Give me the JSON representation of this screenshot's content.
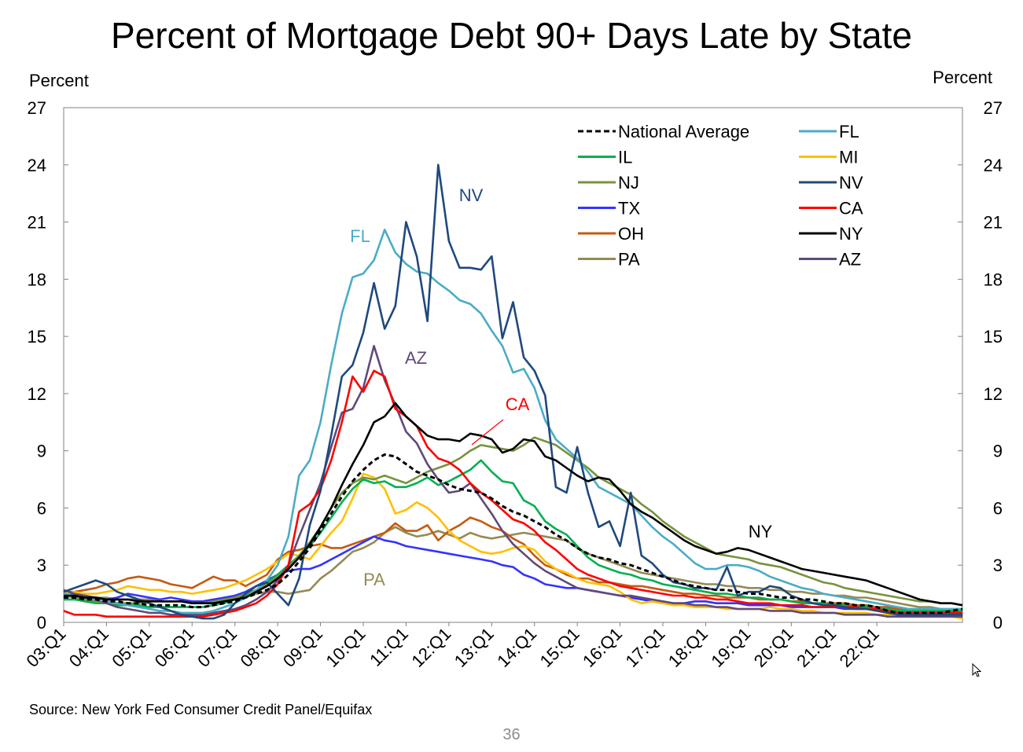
{
  "chart_data": {
    "type": "line",
    "title": "Percent of Mortgage Debt 90+ Days Late by State",
    "ylabel_left": "Percent",
    "ylabel_right": "Percent",
    "xlabel": "",
    "ylim": [
      0,
      27
    ],
    "yticks": [
      "0",
      "3",
      "6",
      "9",
      "12",
      "15",
      "18",
      "21",
      "24",
      "27"
    ],
    "x_start": 2003.0,
    "x_step": 0.25,
    "x_ticks": [
      "03:Q1",
      "04:Q1",
      "05:Q1",
      "06:Q1",
      "07:Q1",
      "08:Q1",
      "09:Q1",
      "10:Q1",
      "11:Q1",
      "12:Q1",
      "13:Q1",
      "14:Q1",
      "15:Q1",
      "16:Q1",
      "17:Q1",
      "18:Q1",
      "19:Q1",
      "20:Q1",
      "21:Q1",
      "22:Q1"
    ],
    "legend": {
      "placement": "top-right",
      "columns": 2
    },
    "annotations": [
      {
        "text": "NV",
        "series": "NV",
        "color": "#1f497d"
      },
      {
        "text": "FL",
        "series": "FL",
        "color": "#4bacc6"
      },
      {
        "text": "AZ",
        "series": "AZ",
        "color": "#60497a"
      },
      {
        "text": "CA",
        "series": "CA",
        "color": "#ff0000"
      },
      {
        "text": "NY",
        "series": "NY",
        "color": "#000000"
      },
      {
        "text": "PA",
        "series": "PA",
        "color": "#948a54"
      }
    ],
    "series": [
      {
        "name": "National Average",
        "color": "#000000",
        "dashed": true,
        "values": [
          1.3,
          1.3,
          1.2,
          1.2,
          1.1,
          1.1,
          1.0,
          1.0,
          0.9,
          0.9,
          0.9,
          0.9,
          0.8,
          0.8,
          0.9,
          1.0,
          1.1,
          1.3,
          1.5,
          1.7,
          2.0,
          2.5,
          3.2,
          3.9,
          4.8,
          5.7,
          6.6,
          7.4,
          8.0,
          8.5,
          8.8,
          8.7,
          8.3,
          7.9,
          7.7,
          7.5,
          7.2,
          7.0,
          6.9,
          6.8,
          6.5,
          6.1,
          5.8,
          5.6,
          5.3,
          5.0,
          4.6,
          4.3,
          3.9,
          3.6,
          3.4,
          3.3,
          3.1,
          3.0,
          2.8,
          2.6,
          2.4,
          2.2,
          2.0,
          1.9,
          1.8,
          1.7,
          1.7,
          1.6,
          1.5,
          1.5,
          1.4,
          1.3,
          1.3,
          1.2,
          1.2,
          1.1,
          1.0,
          1.0,
          0.9,
          0.9,
          0.8,
          0.6,
          0.5,
          0.5,
          0.5,
          0.5,
          0.5,
          0.6,
          0.7
        ]
      },
      {
        "name": "FL",
        "color": "#4bacc6",
        "values": [
          1.5,
          1.4,
          1.3,
          1.2,
          1.1,
          1.0,
          0.9,
          0.8,
          0.7,
          0.6,
          0.6,
          0.5,
          0.5,
          0.5,
          0.6,
          0.8,
          1.0,
          1.3,
          1.7,
          2.2,
          3.0,
          4.5,
          7.7,
          8.5,
          10.5,
          13.5,
          16.2,
          18.1,
          18.3,
          19.0,
          20.6,
          19.4,
          18.8,
          18.4,
          18.3,
          17.8,
          17.4,
          16.9,
          16.7,
          16.2,
          15.3,
          14.5,
          13.1,
          13.3,
          12.3,
          10.6,
          9.6,
          9.1,
          8.6,
          7.9,
          7.1,
          6.8,
          6.5,
          6.2,
          5.6,
          5.0,
          4.5,
          4.1,
          3.6,
          3.1,
          2.8,
          2.8,
          3.0,
          3.0,
          2.9,
          2.7,
          2.4,
          2.2,
          2.0,
          1.8,
          1.7,
          1.5,
          1.4,
          1.3,
          1.2,
          1.1,
          1.0,
          0.9,
          0.8,
          0.7,
          0.7,
          0.7,
          0.7,
          0.7,
          0.7
        ]
      },
      {
        "name": "IL",
        "color": "#00b050",
        "values": [
          1.2,
          1.2,
          1.1,
          1.0,
          1.0,
          0.9,
          0.9,
          0.9,
          0.8,
          0.8,
          0.8,
          0.8,
          0.8,
          0.8,
          0.9,
          1.0,
          1.2,
          1.4,
          1.7,
          2.1,
          2.5,
          3.0,
          3.5,
          4.0,
          4.7,
          5.5,
          6.3,
          7.0,
          7.5,
          7.3,
          7.4,
          7.1,
          7.1,
          7.3,
          7.6,
          7.2,
          7.4,
          7.7,
          8.0,
          8.5,
          7.9,
          7.4,
          7.3,
          6.4,
          6.1,
          5.3,
          4.9,
          4.6,
          4.0,
          3.4,
          3.0,
          2.8,
          2.6,
          2.5,
          2.3,
          2.2,
          2.0,
          1.9,
          1.8,
          1.7,
          1.6,
          1.5,
          1.5,
          1.4,
          1.3,
          1.3,
          1.2,
          1.2,
          1.1,
          1.0,
          1.0,
          1.0,
          0.9,
          0.9,
          0.8,
          0.8,
          0.7,
          0.7,
          0.6,
          0.6,
          0.6,
          0.6,
          0.6,
          0.6,
          0.6
        ]
      },
      {
        "name": "MI",
        "color": "#ffc000",
        "values": [
          1.5,
          1.6,
          1.5,
          1.5,
          1.6,
          1.7,
          1.9,
          1.8,
          1.7,
          1.7,
          1.6,
          1.6,
          1.5,
          1.6,
          1.7,
          1.8,
          2.0,
          2.2,
          2.5,
          2.8,
          3.2,
          3.6,
          3.5,
          3.3,
          4.0,
          4.7,
          5.3,
          6.5,
          7.8,
          7.6,
          7.0,
          5.7,
          5.9,
          6.3,
          6.0,
          5.5,
          4.8,
          4.3,
          4.0,
          3.7,
          3.6,
          3.7,
          3.9,
          4.0,
          3.8,
          3.2,
          2.8,
          2.6,
          2.3,
          2.1,
          2.0,
          1.9,
          1.6,
          1.2,
          1.0,
          1.1,
          1.0,
          0.9,
          0.9,
          0.8,
          0.8,
          0.8,
          0.7,
          0.7,
          0.7,
          0.7,
          0.8,
          0.7,
          0.7,
          0.6,
          0.6,
          0.5,
          0.5,
          0.5,
          0.5,
          0.5,
          0.4,
          0.4,
          0.4,
          0.4,
          0.4,
          0.3,
          0.3,
          0.3,
          0.2
        ]
      },
      {
        "name": "NJ",
        "color": "#77933c",
        "values": [
          1.4,
          1.3,
          1.2,
          1.1,
          1.0,
          1.0,
          1.0,
          1.0,
          1.1,
          1.1,
          1.1,
          1.1,
          1.0,
          1.0,
          1.1,
          1.2,
          1.3,
          1.5,
          1.7,
          2.0,
          2.4,
          2.9,
          3.5,
          4.2,
          5.0,
          6.0,
          6.8,
          7.3,
          7.6,
          7.5,
          7.7,
          7.5,
          7.3,
          7.6,
          7.9,
          8.1,
          8.3,
          8.6,
          9.0,
          9.3,
          9.2,
          9.1,
          9.0,
          9.3,
          9.7,
          9.5,
          9.3,
          8.9,
          8.5,
          8.1,
          7.6,
          7.3,
          7.0,
          6.7,
          6.2,
          5.8,
          5.3,
          4.9,
          4.5,
          4.2,
          3.9,
          3.6,
          3.5,
          3.4,
          3.3,
          3.1,
          3.0,
          2.9,
          2.7,
          2.5,
          2.3,
          2.1,
          2.0,
          1.8,
          1.7,
          1.6,
          1.5,
          1.4,
          1.3,
          1.2,
          1.1,
          1.1,
          1.0,
          1.0,
          0.9
        ]
      },
      {
        "name": "NV",
        "color": "#1f497d",
        "values": [
          1.6,
          1.8,
          2.0,
          2.2,
          2.0,
          1.6,
          1.4,
          1.2,
          1.0,
          0.8,
          0.6,
          0.4,
          0.3,
          0.2,
          0.2,
          0.4,
          1.0,
          1.5,
          1.9,
          2.1,
          1.5,
          0.9,
          2.3,
          5.1,
          6.9,
          9.8,
          12.9,
          13.5,
          15.2,
          17.8,
          15.4,
          16.6,
          21.0,
          19.2,
          15.8,
          24.0,
          20.0,
          18.6,
          18.6,
          18.5,
          19.2,
          14.9,
          16.8,
          13.9,
          13.2,
          11.9,
          7.1,
          6.8,
          9.2,
          6.8,
          5.0,
          5.3,
          4.0,
          6.8,
          3.5,
          3.1,
          2.5,
          2.1,
          2.0,
          1.8,
          1.8,
          1.7,
          2.9,
          1.4,
          1.6,
          1.6,
          1.9,
          1.8,
          1.4,
          1.2,
          1.0,
          0.9,
          0.9,
          0.8,
          0.7,
          0.7,
          0.6,
          0.5,
          0.4,
          0.4,
          0.4,
          0.4,
          0.4,
          0.4,
          0.4
        ]
      },
      {
        "name": "TX",
        "color": "#3333ff",
        "values": [
          1.6,
          1.5,
          1.4,
          1.3,
          1.2,
          1.3,
          1.5,
          1.4,
          1.3,
          1.2,
          1.3,
          1.2,
          1.1,
          1.1,
          1.2,
          1.3,
          1.4,
          1.6,
          1.9,
          2.2,
          2.5,
          2.7,
          2.8,
          2.8,
          3.0,
          3.3,
          3.6,
          3.9,
          4.2,
          4.5,
          4.3,
          4.2,
          4.0,
          3.9,
          3.8,
          3.7,
          3.6,
          3.5,
          3.4,
          3.3,
          3.2,
          3.0,
          2.9,
          2.5,
          2.3,
          2.0,
          1.9,
          1.8,
          1.8,
          1.7,
          1.6,
          1.5,
          1.4,
          1.3,
          1.2,
          1.1,
          1.0,
          1.0,
          1.0,
          1.1,
          1.1,
          1.0,
          1.0,
          1.0,
          0.9,
          0.9,
          0.9,
          0.9,
          0.8,
          0.8,
          0.8,
          0.8,
          0.8,
          0.7,
          0.7,
          0.7,
          0.7,
          0.6,
          0.6,
          0.5,
          0.5,
          0.5,
          0.5,
          0.5,
          0.5
        ]
      },
      {
        "name": "CA",
        "color": "#ff0000",
        "values": [
          0.6,
          0.4,
          0.4,
          0.4,
          0.3,
          0.3,
          0.3,
          0.3,
          0.3,
          0.3,
          0.3,
          0.3,
          0.3,
          0.3,
          0.4,
          0.5,
          0.6,
          0.8,
          1.0,
          1.4,
          2.0,
          3.0,
          5.8,
          6.2,
          7.0,
          8.5,
          10.5,
          12.9,
          12.1,
          13.2,
          12.9,
          11.2,
          10.8,
          10.3,
          9.2,
          8.6,
          8.4,
          8.0,
          7.3,
          6.8,
          6.4,
          5.9,
          5.4,
          5.2,
          4.8,
          4.2,
          3.8,
          3.3,
          2.8,
          2.5,
          2.3,
          2.1,
          1.9,
          1.8,
          1.7,
          1.6,
          1.5,
          1.4,
          1.4,
          1.3,
          1.3,
          1.2,
          1.2,
          1.1,
          1.0,
          1.0,
          1.0,
          0.9,
          0.9,
          0.9,
          0.8,
          0.8,
          0.8,
          0.8,
          0.8,
          0.7,
          0.7,
          0.6,
          0.5,
          0.5,
          0.5,
          0.5,
          0.5,
          0.5,
          0.5
        ]
      },
      {
        "name": "OH",
        "color": "#c55a11",
        "values": [
          1.6,
          1.6,
          1.7,
          1.8,
          2.0,
          2.1,
          2.3,
          2.4,
          2.3,
          2.2,
          2.0,
          1.9,
          1.8,
          2.1,
          2.4,
          2.2,
          2.2,
          1.9,
          2.2,
          2.5,
          3.3,
          3.7,
          3.8,
          4.0,
          4.1,
          3.9,
          3.9,
          4.1,
          4.3,
          4.5,
          4.7,
          5.2,
          4.8,
          4.8,
          5.1,
          4.3,
          4.8,
          5.1,
          5.5,
          5.3,
          5.0,
          4.8,
          4.4,
          4.1,
          3.5,
          3.0,
          2.8,
          2.5,
          2.3,
          2.3,
          2.1,
          2.1,
          2.0,
          1.9,
          1.9,
          1.8,
          1.7,
          1.6,
          1.5,
          1.5,
          1.4,
          1.4,
          1.3,
          1.3,
          1.3,
          1.2,
          1.2,
          1.2,
          1.1,
          1.1,
          1.0,
          1.0,
          1.0,
          1.0,
          0.9,
          0.9,
          0.8,
          0.8,
          0.7,
          0.7,
          0.7,
          0.6,
          0.6,
          0.6,
          0.6
        ]
      },
      {
        "name": "NY",
        "color": "#000000",
        "values": [
          1.4,
          1.4,
          1.3,
          1.3,
          1.2,
          1.2,
          1.2,
          1.1,
          1.1,
          1.1,
          1.1,
          1.1,
          1.0,
          1.0,
          1.0,
          1.1,
          1.2,
          1.3,
          1.6,
          1.9,
          2.3,
          2.8,
          3.4,
          4.1,
          5.0,
          6.0,
          7.2,
          8.3,
          9.3,
          10.5,
          10.8,
          11.5,
          10.8,
          10.3,
          9.8,
          9.6,
          9.6,
          9.5,
          9.9,
          9.8,
          9.6,
          8.9,
          9.1,
          9.6,
          9.5,
          8.7,
          8.5,
          8.1,
          7.7,
          7.4,
          7.6,
          7.5,
          6.9,
          6.2,
          5.8,
          5.5,
          5.1,
          4.7,
          4.3,
          4.0,
          3.8,
          3.6,
          3.7,
          3.9,
          3.8,
          3.6,
          3.4,
          3.2,
          3.0,
          2.8,
          2.7,
          2.6,
          2.5,
          2.4,
          2.3,
          2.2,
          2.0,
          1.8,
          1.6,
          1.4,
          1.2,
          1.1,
          1.0,
          1.0,
          0.9
        ]
      },
      {
        "name": "PA",
        "color": "#948a54",
        "values": [
          1.5,
          1.4,
          1.4,
          1.3,
          1.3,
          1.2,
          1.2,
          1.2,
          1.2,
          1.1,
          1.1,
          1.1,
          1.1,
          1.1,
          1.2,
          1.2,
          1.3,
          1.4,
          1.5,
          1.6,
          1.6,
          1.5,
          1.6,
          1.7,
          2.3,
          2.7,
          3.2,
          3.7,
          3.9,
          4.2,
          4.7,
          5.0,
          4.7,
          4.5,
          4.6,
          4.8,
          4.6,
          4.4,
          4.7,
          4.5,
          4.4,
          4.5,
          4.6,
          4.7,
          4.6,
          4.5,
          4.4,
          4.3,
          3.9,
          3.6,
          3.4,
          3.2,
          3.0,
          2.8,
          2.6,
          2.5,
          2.4,
          2.3,
          2.2,
          2.1,
          2.0,
          2.0,
          1.9,
          1.9,
          1.8,
          1.8,
          1.7,
          1.7,
          1.6,
          1.6,
          1.5,
          1.5,
          1.4,
          1.4,
          1.3,
          1.3,
          1.2,
          1.1,
          1.0,
          0.9,
          0.8,
          0.8,
          0.7,
          0.7,
          0.7
        ]
      },
      {
        "name": "AZ",
        "color": "#60497a",
        "values": [
          1.7,
          1.5,
          1.4,
          1.2,
          1.0,
          0.8,
          0.7,
          0.6,
          0.5,
          0.5,
          0.4,
          0.4,
          0.4,
          0.4,
          0.5,
          0.6,
          0.7,
          0.9,
          1.2,
          1.6,
          2.2,
          3.0,
          4.5,
          5.9,
          7.3,
          9.2,
          11.0,
          11.2,
          12.3,
          14.5,
          12.7,
          11.4,
          10.0,
          9.4,
          8.3,
          7.5,
          6.8,
          6.9,
          7.3,
          6.5,
          5.7,
          4.8,
          4.1,
          3.6,
          3.1,
          2.7,
          2.4,
          2.1,
          1.8,
          1.7,
          1.6,
          1.5,
          1.4,
          1.4,
          1.3,
          1.2,
          1.1,
          1.0,
          1.0,
          0.9,
          0.9,
          0.8,
          0.8,
          0.7,
          0.7,
          0.7,
          0.6,
          0.6,
          0.6,
          0.5,
          0.5,
          0.5,
          0.5,
          0.4,
          0.4,
          0.4,
          0.4,
          0.3,
          0.3,
          0.3,
          0.3,
          0.3,
          0.3,
          0.3,
          0.3
        ]
      }
    ]
  },
  "source": "Source: New York Fed Consumer Credit Panel/Equifax",
  "page_number": "36",
  "cursor": "pointer-arrow-icon"
}
